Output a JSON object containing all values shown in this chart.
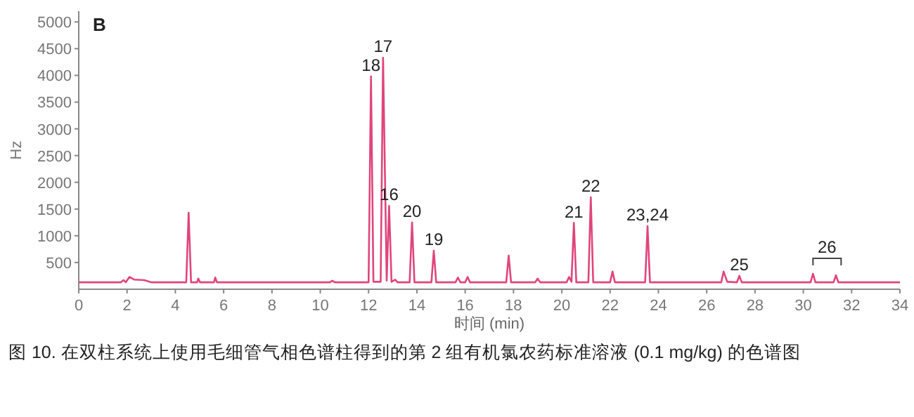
{
  "chart_data": {
    "type": "line",
    "title": "B",
    "xlabel": "时间 (min)",
    "ylabel": "Hz",
    "xlim": [
      0,
      34
    ],
    "xticks": [
      0,
      2,
      4,
      6,
      8,
      10,
      12,
      14,
      16,
      18,
      20,
      22,
      24,
      26,
      28,
      30,
      32,
      34
    ],
    "ylim": [
      0,
      5200
    ],
    "yticks": [
      500,
      1000,
      1500,
      2000,
      2500,
      3000,
      3500,
      4000,
      4500,
      5000
    ],
    "grid": false,
    "marker": "none",
    "line_style": "solid",
    "series": [
      {
        "color": "#e0457b",
        "x": [
          0,
          1.75,
          1.85,
          1.95,
          2.1,
          2.3,
          2.7,
          3.0,
          4.45,
          4.55,
          4.65,
          4.9,
          4.95,
          5.02,
          5.6,
          5.65,
          5.72,
          10.4,
          10.5,
          10.6,
          12.0,
          12.1,
          12.2,
          12.5,
          12.6,
          12.75,
          12.85,
          12.95,
          13.1,
          13.2,
          13.7,
          13.8,
          13.9,
          14.6,
          14.7,
          14.8,
          15.6,
          15.7,
          15.8,
          16.0,
          16.1,
          16.2,
          17.7,
          17.8,
          17.9,
          18.9,
          19.0,
          19.1,
          20.2,
          20.3,
          20.4,
          20.5,
          20.6,
          21.1,
          21.2,
          21.3,
          22.0,
          22.1,
          22.2,
          23.45,
          23.55,
          23.65,
          26.6,
          26.7,
          26.85,
          27.25,
          27.35,
          27.45,
          30.3,
          30.4,
          30.5,
          31.25,
          31.35,
          31.45,
          34
        ],
        "values": [
          130,
          130,
          170,
          130,
          230,
          180,
          170,
          130,
          130,
          1430,
          130,
          130,
          200,
          130,
          130,
          220,
          130,
          130,
          160,
          130,
          130,
          3980,
          140,
          140,
          4330,
          160,
          1560,
          140,
          180,
          130,
          130,
          1250,
          130,
          130,
          720,
          130,
          130,
          220,
          130,
          130,
          230,
          130,
          130,
          630,
          130,
          130,
          200,
          130,
          130,
          230,
          140,
          1240,
          130,
          130,
          1720,
          130,
          130,
          330,
          130,
          130,
          1180,
          130,
          130,
          330,
          140,
          130,
          250,
          130,
          130,
          290,
          130,
          130,
          260,
          130,
          130
        ]
      }
    ],
    "annotations": [
      {
        "text": "18",
        "x": 12.1,
        "y": 3980
      },
      {
        "text": "17",
        "x": 12.6,
        "y": 4330
      },
      {
        "text": "16",
        "x": 12.85,
        "y": 1560
      },
      {
        "text": "20",
        "x": 13.8,
        "y": 1250
      },
      {
        "text": "19",
        "x": 14.7,
        "y": 720
      },
      {
        "text": "21",
        "x": 20.5,
        "y": 1240
      },
      {
        "text": "22",
        "x": 21.2,
        "y": 1720
      },
      {
        "text": "23,24",
        "x": 23.55,
        "y": 1180
      },
      {
        "text": "25",
        "x": 27.35,
        "y": 250
      },
      {
        "text": "26",
        "x": 30.4,
        "y": 290
      },
      "图 10. 在双柱系统上使用毛细管气相色谱柱得到的第 2 组有机氯农药标准溶液 (0.1 mg/kg) 的色谱图"
    ]
  }
}
